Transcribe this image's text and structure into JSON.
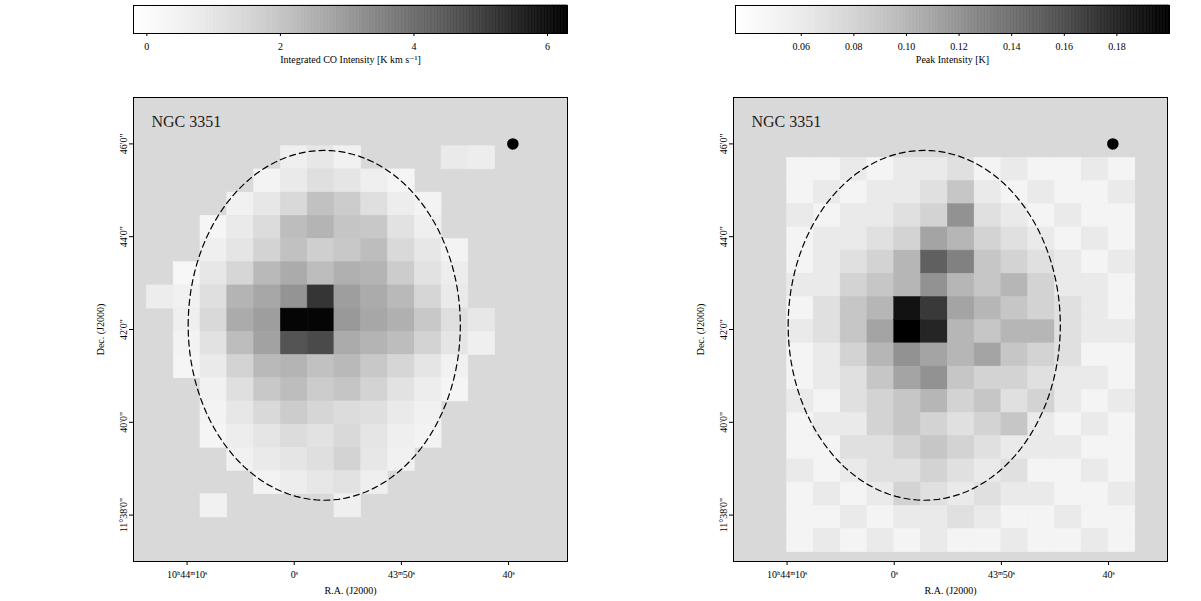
{
  "chart_data": [
    {
      "type": "heatmap",
      "title": "NGC 3351",
      "xlabel": "R.A. (J2000)",
      "ylabel": "Dec. (J2000)",
      "xlim": [
        38655,
        38614.5
      ],
      "xticks": [
        {
          "value": 38650,
          "label": "10ʰ44ᵐ10ˢ"
        },
        {
          "value": 38640,
          "label": "0ˢ"
        },
        {
          "value": 38630,
          "label": "43ᵐ50ˢ"
        },
        {
          "value": 38620,
          "label": "40ˢ"
        }
      ],
      "ylim": [
        697,
        707
      ],
      "yticks": [
        {
          "value": 706,
          "label": "46'0\""
        },
        {
          "value": 704,
          "label": "44'0\""
        },
        {
          "value": 702,
          "label": "42'0\""
        },
        {
          "value": 700,
          "label": "40'0\""
        },
        {
          "value": 698,
          "label": "11°38'0\""
        }
      ],
      "ra_edges": [
        38653.75,
        38651.25,
        38648.75,
        38646.25,
        38643.75,
        38641.25,
        38638.75,
        38636.25,
        38633.75,
        38631.25,
        38628.75,
        38626.25,
        38623.75,
        38621.25,
        38618.75,
        38616.25
      ],
      "dec_edges": [
        706.45,
        705.95,
        705.45,
        704.95,
        704.45,
        703.95,
        703.45,
        702.95,
        702.45,
        701.95,
        701.45,
        700.95,
        700.45,
        699.95,
        699.45,
        698.95,
        698.45,
        697.95
      ],
      "cells": [
        [
          null,
          null,
          null,
          null,
          null,
          null,
          null,
          null,
          null,
          null,
          null,
          null,
          null,
          null,
          null
        ],
        [
          null,
          null,
          null,
          null,
          null,
          0.6,
          0.9,
          0.5,
          null,
          null,
          null,
          0.8,
          0.7,
          null,
          null
        ],
        [
          null,
          null,
          null,
          null,
          0.4,
          0.8,
          1.2,
          1.0,
          0.6,
          0.3,
          null,
          null,
          null,
          null,
          null
        ],
        [
          null,
          null,
          null,
          0.5,
          0.9,
          1.4,
          2.1,
          1.8,
          1.2,
          0.7,
          0.4,
          null,
          null,
          null,
          null
        ],
        [
          null,
          null,
          0.3,
          0.8,
          1.3,
          2.2,
          2.4,
          2.0,
          1.9,
          1.1,
          0.6,
          null,
          null,
          null,
          null
        ],
        [
          null,
          null,
          0.6,
          1.0,
          1.6,
          2.1,
          1.7,
          1.9,
          2.2,
          1.4,
          0.9,
          0.4,
          null,
          null,
          null
        ],
        [
          null,
          0.2,
          0.9,
          1.5,
          2.3,
          2.6,
          2.2,
          2.5,
          2.4,
          1.8,
          1.1,
          0.7,
          null,
          null,
          null
        ],
        [
          0.7,
          0.5,
          1.2,
          2.4,
          2.7,
          3.1,
          5.2,
          2.9,
          2.6,
          2.3,
          1.5,
          0.8,
          null,
          null,
          null
        ],
        [
          null,
          0.6,
          1.4,
          2.6,
          2.9,
          6.2,
          6.2,
          3.0,
          2.7,
          2.5,
          1.9,
          1.2,
          0.9,
          null,
          null
        ],
        [
          null,
          0.4,
          1.1,
          2.2,
          2.8,
          4.6,
          4.8,
          2.6,
          2.4,
          2.2,
          1.6,
          1.0,
          0.6,
          null,
          null
        ],
        [
          null,
          0.3,
          0.8,
          1.6,
          2.3,
          2.4,
          2.1,
          2.3,
          1.9,
          1.5,
          1.0,
          0.5,
          null,
          null,
          null
        ],
        [
          null,
          null,
          0.5,
          1.2,
          1.9,
          2.2,
          1.8,
          2.0,
          1.6,
          1.1,
          0.7,
          0.3,
          null,
          null,
          null
        ],
        [
          null,
          null,
          0.4,
          0.9,
          1.4,
          1.8,
          1.5,
          1.3,
          1.2,
          0.8,
          0.5,
          null,
          null,
          null,
          null
        ],
        [
          null,
          null,
          0.3,
          0.7,
          1.0,
          1.3,
          1.1,
          1.4,
          1.0,
          0.6,
          0.4,
          null,
          null,
          null,
          null
        ],
        [
          null,
          null,
          null,
          0.5,
          0.8,
          1.0,
          1.2,
          1.6,
          0.9,
          0.5,
          null,
          null,
          null,
          null,
          null
        ],
        [
          null,
          null,
          null,
          null,
          0.4,
          0.7,
          0.9,
          1.1,
          0.6,
          null,
          null,
          null,
          null,
          null,
          null
        ],
        [
          null,
          null,
          0.5,
          null,
          null,
          null,
          null,
          0.6,
          null,
          null,
          null,
          null,
          null,
          null,
          null
        ]
      ],
      "colorbar": {
        "label": "Integrated CO Intensity [K km s⁻¹]",
        "range": [
          -0.2,
          6.3
        ],
        "ticks": [
          0,
          2,
          4,
          6
        ]
      },
      "ellipse": {
        "ra": 38637.2,
        "dec": 702.09,
        "ra_radius": 12.7,
        "dec_radius": 3.77
      },
      "beam": {
        "ra": 38619.6,
        "dec": 706.0
      }
    },
    {
      "type": "heatmap",
      "title": "NGC 3351",
      "xlabel": "R.A. (J2000)",
      "ylabel": "Dec. (J2000)",
      "xlim": [
        38655,
        38614.5
      ],
      "xticks": [
        {
          "value": 38650,
          "label": "10ʰ44ᵐ10ˢ"
        },
        {
          "value": 38640,
          "label": "0ˢ"
        },
        {
          "value": 38630,
          "label": "43ᵐ50ˢ"
        },
        {
          "value": 38620,
          "label": "40ˢ"
        }
      ],
      "ylim": [
        697,
        707
      ],
      "yticks": [
        {
          "value": 706,
          "label": "46'0\""
        },
        {
          "value": 704,
          "label": "44'0\""
        },
        {
          "value": 702,
          "label": "42'0\""
        },
        {
          "value": 700,
          "label": "40'0\""
        },
        {
          "value": 698,
          "label": "11°38'0\""
        }
      ],
      "ra_edges": [
        38650,
        38647.5,
        38645,
        38642.5,
        38640,
        38637.5,
        38635,
        38632.5,
        38630,
        38627.5,
        38625,
        38622.5,
        38620,
        38617.5
      ],
      "dec_edges": [
        705.7,
        705.2,
        704.7,
        704.2,
        703.7,
        703.2,
        702.7,
        702.2,
        701.7,
        701.2,
        700.7,
        700.2,
        699.7,
        699.2,
        698.7,
        698.2,
        697.7,
        697.2
      ],
      "cells": [
        [
          0.05,
          0.05,
          0.06,
          0.05,
          0.06,
          0.06,
          0.07,
          0.05,
          0.06,
          0.05,
          0.05,
          0.06,
          0.05
        ],
        [
          0.05,
          0.06,
          0.05,
          0.06,
          0.06,
          0.07,
          0.09,
          0.06,
          0.05,
          0.06,
          0.05,
          0.05,
          0.06
        ],
        [
          0.06,
          0.05,
          0.06,
          0.06,
          0.07,
          0.08,
          0.12,
          0.07,
          0.06,
          0.05,
          0.06,
          0.05,
          0.05
        ],
        [
          0.05,
          0.06,
          0.06,
          0.07,
          0.08,
          0.11,
          0.1,
          0.08,
          0.07,
          0.06,
          0.05,
          0.06,
          0.05
        ],
        [
          0.05,
          0.06,
          0.07,
          0.08,
          0.1,
          0.15,
          0.13,
          0.09,
          0.08,
          0.07,
          0.06,
          0.05,
          0.06
        ],
        [
          0.06,
          0.06,
          0.08,
          0.09,
          0.1,
          0.12,
          0.1,
          0.09,
          0.1,
          0.08,
          0.06,
          0.06,
          0.05
        ],
        [
          0.05,
          0.07,
          0.09,
          0.1,
          0.19,
          0.17,
          0.11,
          0.1,
          0.09,
          0.08,
          0.07,
          0.06,
          0.05
        ],
        [
          0.06,
          0.07,
          0.09,
          0.11,
          0.2,
          0.18,
          0.1,
          0.09,
          0.1,
          0.1,
          0.07,
          0.06,
          0.06
        ],
        [
          0.05,
          0.06,
          0.08,
          0.1,
          0.12,
          0.11,
          0.1,
          0.11,
          0.09,
          0.08,
          0.07,
          0.05,
          0.05
        ],
        [
          0.05,
          0.06,
          0.07,
          0.09,
          0.11,
          0.12,
          0.09,
          0.08,
          0.08,
          0.07,
          0.06,
          0.06,
          0.05
        ],
        [
          0.06,
          0.05,
          0.07,
          0.08,
          0.09,
          0.1,
          0.08,
          0.09,
          0.07,
          0.08,
          0.06,
          0.05,
          0.06
        ],
        [
          0.05,
          0.06,
          0.06,
          0.08,
          0.09,
          0.08,
          0.07,
          0.08,
          0.09,
          0.06,
          0.05,
          0.06,
          0.05
        ],
        [
          0.05,
          0.05,
          0.07,
          0.07,
          0.08,
          0.09,
          0.08,
          0.07,
          0.06,
          0.06,
          0.06,
          0.05,
          0.05
        ],
        [
          0.06,
          0.05,
          0.06,
          0.07,
          0.07,
          0.08,
          0.07,
          0.06,
          0.07,
          0.05,
          0.05,
          0.06,
          0.05
        ],
        [
          0.05,
          0.06,
          0.05,
          0.06,
          0.08,
          0.07,
          0.06,
          0.07,
          0.06,
          0.06,
          0.05,
          0.05,
          0.06
        ],
        [
          0.05,
          0.05,
          0.06,
          0.05,
          0.06,
          0.06,
          0.07,
          0.06,
          0.05,
          0.05,
          0.06,
          0.05,
          0.05
        ],
        [
          0.05,
          0.06,
          0.05,
          0.06,
          0.05,
          0.06,
          0.05,
          0.05,
          0.06,
          0.05,
          0.05,
          0.06,
          0.05
        ]
      ],
      "colorbar": {
        "label": "Peak Intensity [K]",
        "range": [
          0.035,
          0.2
        ],
        "ticks": [
          0.06,
          0.08,
          {
            "value": 0.1,
            "label": "0.10"
          },
          0.12,
          0.14,
          0.16,
          0.18
        ]
      },
      "ellipse": {
        "ra": 38637.2,
        "dec": 702.09,
        "ra_radius": 12.7,
        "dec_radius": 3.77
      },
      "beam": {
        "ra": 38619.6,
        "dec": 706.0
      }
    }
  ]
}
